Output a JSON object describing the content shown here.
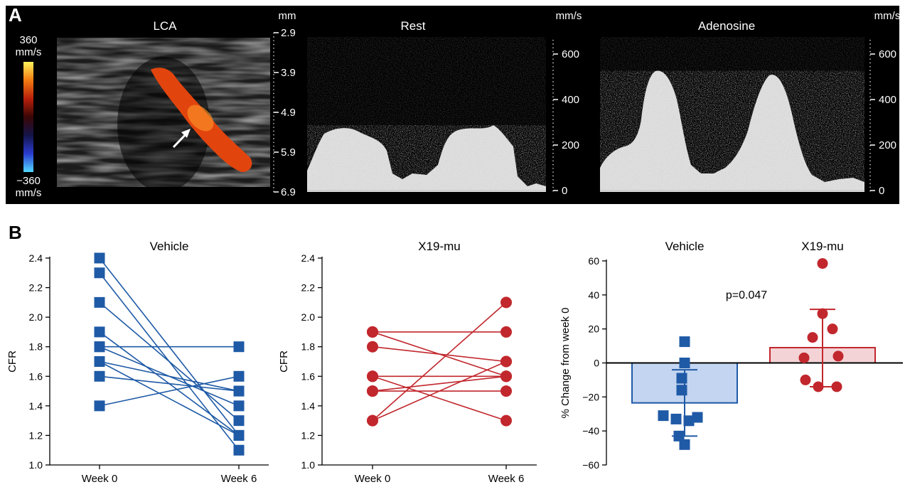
{
  "panel_a": {
    "label": "A",
    "lca_title": "LCA",
    "depth_unit": "mm",
    "depth_ticks": [
      "2.9",
      "3.9",
      "4.9",
      "5.9",
      "6.9"
    ],
    "colorbar_max": "360",
    "colorbar_max_unit": "mm/s",
    "colorbar_min": "−360",
    "colorbar_min_unit": "mm/s",
    "colorbar_colors": [
      "#fff35a",
      "#f27b12",
      "#b8200b",
      "#3a0606",
      "#141448",
      "#2a3cd0",
      "#52d8ff"
    ],
    "doppler_color": "#e2440e",
    "rest_title": "Rest",
    "rest_unit": "mm/s",
    "rest_ticks": [
      "600",
      "400",
      "200",
      "0"
    ],
    "adenosine_title": "Adenosine",
    "adenosine_unit": "mm/s",
    "adenosine_ticks": [
      "600",
      "400",
      "200",
      "0"
    ]
  },
  "panel_b_label": "B",
  "chart_data": [
    {
      "type": "line",
      "title": "Vehicle",
      "ylabel": "CFR",
      "categories": [
        "Week 0",
        "Week 6"
      ],
      "ylim": [
        1.0,
        2.4
      ],
      "yticks": [
        "1.0",
        "1.2",
        "1.4",
        "1.6",
        "1.8",
        "2.0",
        "2.2",
        "2.4"
      ],
      "color": "#1f5aa6",
      "marker": "square",
      "pairs": [
        [
          2.4,
          1.2
        ],
        [
          2.3,
          1.1
        ],
        [
          2.1,
          1.3
        ],
        [
          1.9,
          1.2
        ],
        [
          1.8,
          1.8
        ],
        [
          1.8,
          1.4
        ],
        [
          1.7,
          1.5
        ],
        [
          1.7,
          1.2
        ],
        [
          1.6,
          1.5
        ],
        [
          1.4,
          1.6
        ]
      ]
    },
    {
      "type": "line",
      "title": "X19-mu",
      "ylabel": "CFR",
      "categories": [
        "Week 0",
        "Week 6"
      ],
      "ylim": [
        1.0,
        2.4
      ],
      "yticks": [
        "1.0",
        "1.2",
        "1.4",
        "1.6",
        "1.8",
        "2.0",
        "2.2",
        "2.4"
      ],
      "color": "#c1272d",
      "marker": "circle",
      "pairs": [
        [
          1.9,
          1.9
        ],
        [
          1.9,
          1.6
        ],
        [
          1.8,
          1.7
        ],
        [
          1.6,
          1.6
        ],
        [
          1.6,
          1.3
        ],
        [
          1.5,
          1.6
        ],
        [
          1.5,
          1.5
        ],
        [
          1.3,
          2.1
        ],
        [
          1.3,
          1.7
        ]
      ]
    },
    {
      "type": "bar",
      "ylabel": "% Change from week 0",
      "categories": [
        "Vehicle",
        "X19-mu"
      ],
      "ylim": [
        -60,
        60
      ],
      "yticks": [
        "60",
        "40",
        "20",
        "0",
        "−20",
        "−40",
        "−60"
      ],
      "annotation": "p=0.047",
      "series": [
        {
          "mean": -23.5,
          "sd_low": -43,
          "sd_high": -4,
          "bar_color": "#c3d5f0",
          "edge_color": "#1f5aa6",
          "marker": "square",
          "points": [
            12.5,
            0,
            -9,
            -16,
            -31,
            -33,
            -34,
            -32,
            -43,
            -48
          ]
        },
        {
          "mean": 9,
          "sd_low": -14,
          "sd_high": 31.5,
          "bar_color": "#f4d3d6",
          "edge_color": "#c1272d",
          "marker": "circle",
          "points": [
            58.5,
            29,
            20,
            15,
            3,
            4,
            -10,
            -14,
            -14
          ]
        }
      ]
    }
  ]
}
